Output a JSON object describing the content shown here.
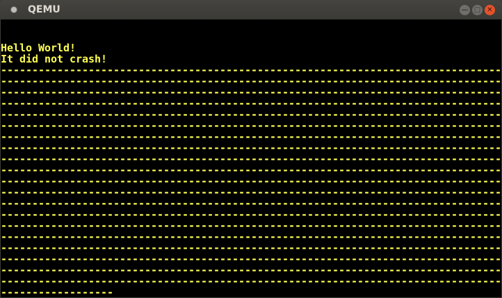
{
  "window": {
    "title": "QEMU",
    "minimize_icon": "minimize-icon",
    "maximize_icon": "maximize-icon",
    "close_icon": "close-icon"
  },
  "screen": {
    "text_color": "#ffff55",
    "lines": [
      "",
      "",
      "Hello World!",
      "It did not crash!",
      "--------------------------------------------------------------------------------",
      "--------------------------------------------------------------------------------",
      "--------------------------------------------------------------------------------",
      "--------------------------------------------------------------------------------",
      "--------------------------------------------------------------------------------",
      "--------------------------------------------------------------------------------",
      "--------------------------------------------------------------------------------",
      "--------------------------------------------------------------------------------",
      "--------------------------------------------------------------------------------",
      "--------------------------------------------------------------------------------",
      "--------------------------------------------------------------------------------",
      "--------------------------------------------------------------------------------",
      "--------------------------------------------------------------------------------",
      "--------------------------------------------------------------------------------",
      "--------------------------------------------------------------------------------",
      "--------------------------------------------------------------------------------",
      "--------------------------------------------------------------------------------",
      "--------------------------------------------------------------------------------",
      "--------------------------------------------------------------------------------",
      "--------------------------------------------------------------------------------",
      "------------------"
    ]
  }
}
